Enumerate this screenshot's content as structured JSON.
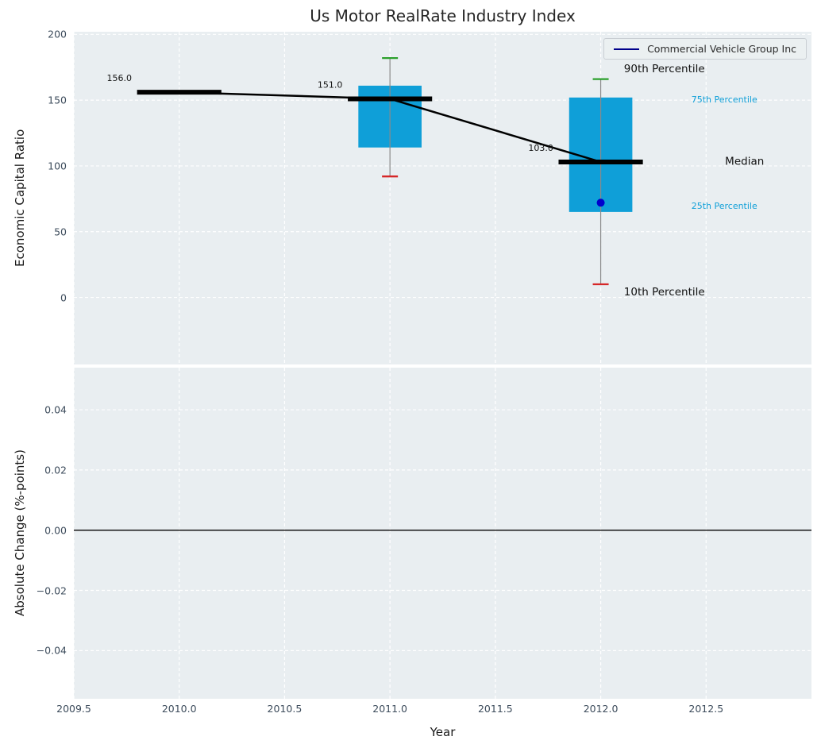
{
  "title": "Us Motor RealRate Industry Index",
  "legend": {
    "label": "Commercial Vehicle Group Inc",
    "line_color": "#00008b"
  },
  "colors": {
    "axes_bg": "#e9eef1",
    "grid": "#ffffff",
    "box_fill": "#0f9fd8",
    "median": "#000000",
    "trend_line": "#000000",
    "whisker": "#8a8a8a",
    "cap_top": "#2ca02c",
    "cap_bottom": "#d62728",
    "company_dot": "#0000cd",
    "percentile_text": "#0f9fd8",
    "zero_line": "#000000",
    "tick_text": "#3d4c5c"
  },
  "chart_data": [
    {
      "type": "box",
      "title": "Us Motor RealRate Industry Index",
      "ylabel": "Economic Capital Ratio",
      "xlim": [
        2009.5,
        2013.0
      ],
      "ylim": [
        -51,
        202
      ],
      "grid": true,
      "legend_position": "upper right",
      "xticks": [
        {
          "v": 2009.5,
          "label": "2009.5"
        },
        {
          "v": 2010.0,
          "label": "2010.0"
        },
        {
          "v": 2010.5,
          "label": "2010.5"
        },
        {
          "v": 2011.0,
          "label": "2011.0"
        },
        {
          "v": 2011.5,
          "label": "2011.5"
        },
        {
          "v": 2012.0,
          "label": "2012.0"
        },
        {
          "v": 2012.5,
          "label": "2012.5"
        }
      ],
      "yticks": [
        {
          "v": 200,
          "label": "200"
        },
        {
          "v": 150,
          "label": "150"
        },
        {
          "v": 100,
          "label": "100"
        },
        {
          "v": 50,
          "label": "50"
        },
        {
          "v": 0,
          "label": "0"
        }
      ],
      "series": [
        {
          "year": 2010,
          "median": 156.0,
          "q1": null,
          "q3": null,
          "p10": null,
          "p90": null,
          "label": "156.0"
        },
        {
          "year": 2011,
          "median": 151.0,
          "q1": 114,
          "q3": 161,
          "p10": 92,
          "p90": 182,
          "label": "151.0"
        },
        {
          "year": 2012,
          "median": 103.0,
          "q1": 65,
          "q3": 152,
          "p10": 10,
          "p90": 166,
          "label": "103.0"
        }
      ],
      "median_trend": [
        [
          2010,
          156.0
        ],
        [
          2011,
          151.0
        ],
        [
          2012,
          103.0
        ]
      ],
      "company_point": {
        "name": "Commercial Vehicle Group Inc",
        "x": 2012,
        "y": 72
      },
      "annotations": [
        {
          "text": "90th Percentile",
          "x": 2012.11,
          "y": 173.5,
          "size": 13.5,
          "color": "#111111"
        },
        {
          "text": "75th Percentile",
          "x": 2012.43,
          "y": 150.5,
          "size": 11,
          "color": "#0f9fd8"
        },
        {
          "text": "Median",
          "x": 2012.59,
          "y": 103.3,
          "size": 13.5,
          "color": "#111111"
        },
        {
          "text": "25th Percentile",
          "x": 2012.43,
          "y": 69.5,
          "size": 11,
          "color": "#0f9fd8"
        },
        {
          "text": "10th Percentile",
          "x": 2012.11,
          "y": 4.0,
          "size": 13.5,
          "color": "#111111"
        }
      ]
    },
    {
      "type": "line",
      "ylabel": "Absolute Change (%-points)",
      "xlabel": "Year",
      "xlim": [
        2009.5,
        2013.0
      ],
      "ylim": [
        -0.056,
        0.054
      ],
      "grid": true,
      "zero_line": true,
      "xticks": [
        {
          "v": 2009.5,
          "label": "2009.5"
        },
        {
          "v": 2010.0,
          "label": "2010.0"
        },
        {
          "v": 2010.5,
          "label": "2010.5"
        },
        {
          "v": 2011.0,
          "label": "2011.0"
        },
        {
          "v": 2011.5,
          "label": "2011.5"
        },
        {
          "v": 2012.0,
          "label": "2012.0"
        },
        {
          "v": 2012.5,
          "label": "2012.5"
        }
      ],
      "yticks": [
        {
          "v": 0.04,
          "label": "0.04"
        },
        {
          "v": 0.02,
          "label": "0.02"
        },
        {
          "v": 0.0,
          "label": "0.00"
        },
        {
          "v": -0.02,
          "label": "−0.02"
        },
        {
          "v": -0.04,
          "label": "−0.04"
        }
      ],
      "series": []
    }
  ]
}
